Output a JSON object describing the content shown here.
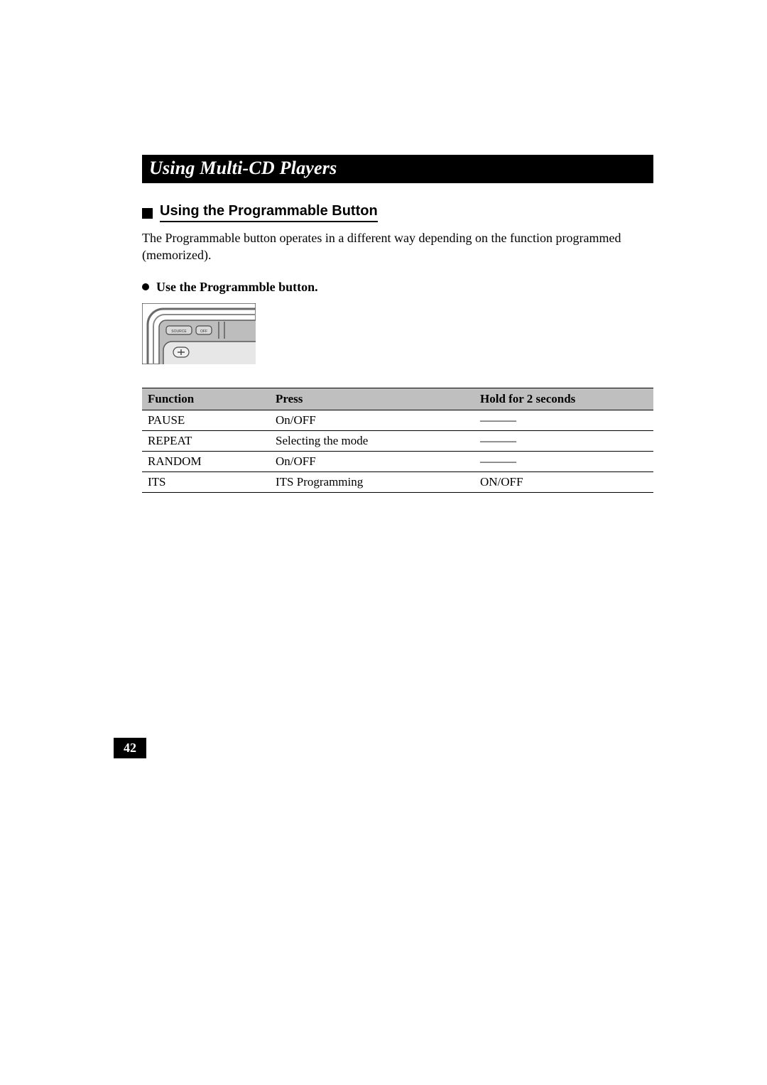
{
  "banner_title": "Using Multi-CD Players",
  "h2": "Using the Programmable Button",
  "intro_text": "The Programmable button operates in a different way depending on the function programmed (memorized).",
  "h3": "Use the Programmble button.",
  "device": {
    "outer_border": "#5a5a5a",
    "body_fill": "#bdbdbd",
    "display_fill": "#e7e7e7",
    "button_stroke": "#4a4a4a",
    "btn1_label": "SOURCE",
    "btn2_label": "OFF"
  },
  "table": {
    "type": "table",
    "header_bg": "#bfbfbf",
    "border_color": "#000000",
    "font_size_pt": 12,
    "col_widths_pct": [
      25,
      40,
      35
    ],
    "columns": [
      "Function",
      "Press",
      "Hold for 2 seconds"
    ],
    "rows": [
      [
        "PAUSE",
        "On/OFF",
        "———"
      ],
      [
        "REPEAT",
        "Selecting the mode",
        "———"
      ],
      [
        "RANDOM",
        "On/OFF",
        "———"
      ],
      [
        "ITS",
        "ITS Programming",
        "ON/OFF"
      ]
    ]
  },
  "page_number": "42",
  "colors": {
    "page_bg": "#ffffff",
    "text": "#000000",
    "banner_bg": "#000000",
    "banner_text": "#ffffff"
  },
  "typography": {
    "body_family": "Times New Roman",
    "h2_family": "Arial",
    "banner_italic": true,
    "banner_bold": true,
    "banner_size_pt": 20,
    "h2_size_pt": 15,
    "body_size_pt": 13
  }
}
